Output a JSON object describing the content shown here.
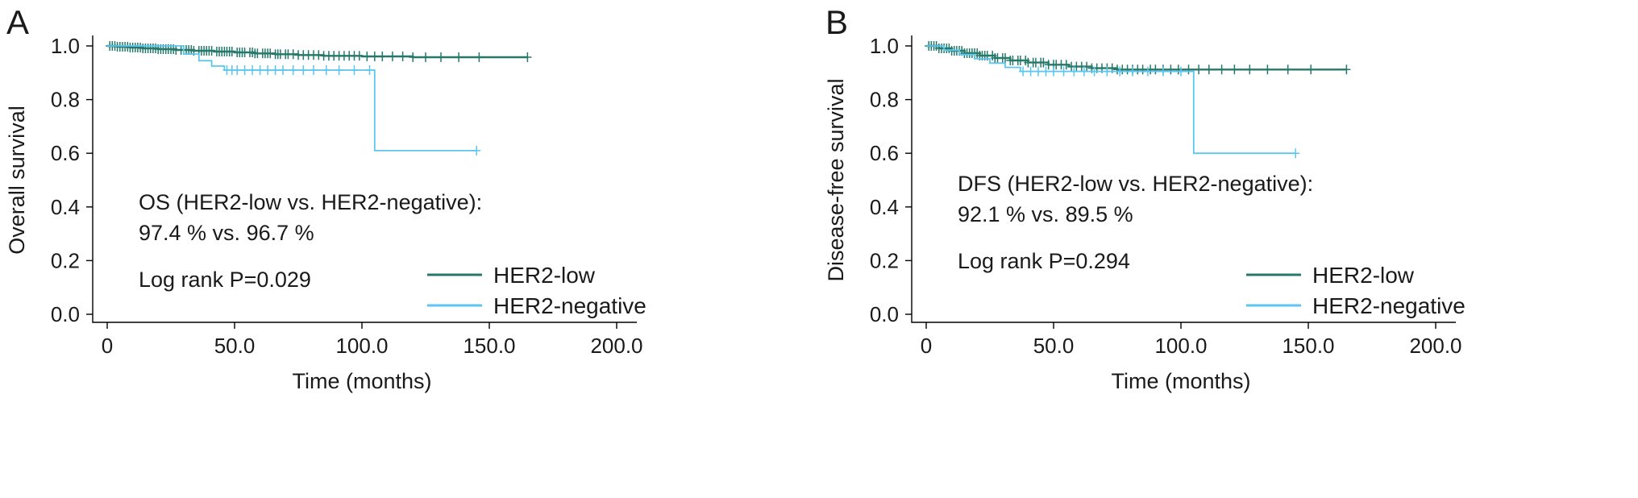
{
  "figure": {
    "background": "#ffffff",
    "text_color": "#1a1a1a",
    "axis_color": "#000000"
  },
  "chart_data": [
    {
      "type": "line",
      "chart_style": "kaplan-meier-step",
      "panel_label": "A",
      "xlabel": "Time (months)",
      "ylabel": "Overall survival",
      "xlim": [
        0,
        200
      ],
      "ylim": [
        0.0,
        1.0
      ],
      "xtick_values": [
        0,
        50,
        100,
        150,
        200
      ],
      "xtick_labels": [
        "0",
        "50.0",
        "100.0",
        "150.0",
        "200.0"
      ],
      "ytick_values": [
        0,
        0.2,
        0.4,
        0.6,
        0.8,
        1
      ],
      "ytick_labels": [
        "0.0",
        "0.2",
        "0.4",
        "0.6",
        "0.8",
        "1.0"
      ],
      "grid": false,
      "legend_position": "bottom-right-inside",
      "annotation_lines": [
        "OS (HER2-low vs. HER2-negative):",
        "97.4 % vs. 96.7 %",
        "Log rank P=0.029"
      ],
      "series": [
        {
          "name": "HER2-low",
          "color": "#26796a",
          "step_x": [
            0,
            4,
            9,
            14,
            20,
            27,
            34,
            42,
            50,
            58,
            66,
            75,
            85,
            100,
            120,
            165
          ],
          "step_y": [
            1.0,
            0.997,
            0.994,
            0.991,
            0.988,
            0.985,
            0.982,
            0.979,
            0.976,
            0.972,
            0.969,
            0.966,
            0.963,
            0.961,
            0.958,
            0.958
          ],
          "censor_x": [
            1,
            2,
            3,
            4,
            5,
            6,
            7,
            8,
            9,
            10,
            11,
            12,
            13,
            14,
            15,
            16,
            17,
            18,
            19,
            20,
            21,
            22,
            23,
            24,
            25,
            26,
            27,
            29,
            30,
            31,
            32,
            33,
            34,
            36,
            37,
            38,
            39,
            40,
            41,
            43,
            44,
            45,
            46,
            47,
            48,
            49,
            51,
            52,
            53,
            54,
            56,
            57,
            58,
            59,
            61,
            62,
            63,
            64,
            66,
            67,
            68,
            70,
            71,
            73,
            75,
            77,
            79,
            81,
            83,
            85,
            87,
            89,
            91,
            93,
            95,
            97,
            99,
            102,
            105,
            108,
            112,
            116,
            120,
            125,
            131,
            138,
            146,
            165
          ]
        },
        {
          "name": "HER2-negative",
          "color": "#5bc6f0",
          "step_x": [
            0,
            30,
            36,
            41,
            46,
            105,
            145
          ],
          "step_y": [
            1.0,
            0.97,
            0.945,
            0.925,
            0.91,
            0.61,
            0.61
          ],
          "censor_x": [
            47,
            49,
            51,
            54,
            57,
            60,
            63,
            66,
            69,
            73,
            77,
            81,
            86,
            91,
            97,
            103,
            145
          ]
        }
      ]
    },
    {
      "type": "line",
      "chart_style": "kaplan-meier-step",
      "panel_label": "B",
      "xlabel": "Time (months)",
      "ylabel": "Disease-free survival",
      "xlim": [
        0,
        200
      ],
      "ylim": [
        0.0,
        1.0
      ],
      "xtick_values": [
        0,
        50,
        100,
        150,
        200
      ],
      "xtick_labels": [
        "0",
        "50.0",
        "100.0",
        "150.0",
        "200.0"
      ],
      "ytick_values": [
        0,
        0.2,
        0.4,
        0.6,
        0.8,
        1
      ],
      "ytick_labels": [
        "0.0",
        "0.2",
        "0.4",
        "0.6",
        "0.8",
        "1.0"
      ],
      "grid": false,
      "legend_position": "bottom-right-inside",
      "annotation_lines": [
        "DFS (HER2-low vs. HER2-negative):",
        "92.1 % vs. 89.5 %",
        "Log rank P=0.294"
      ],
      "series": [
        {
          "name": "HER2-low",
          "color": "#26796a",
          "step_x": [
            0,
            5,
            10,
            15,
            21,
            27,
            33,
            40,
            48,
            56,
            65,
            75,
            165
          ],
          "step_y": [
            1.0,
            0.991,
            0.982,
            0.973,
            0.964,
            0.955,
            0.946,
            0.938,
            0.93,
            0.923,
            0.917,
            0.912,
            0.912
          ],
          "censor_x": [
            1,
            2,
            3,
            4,
            5,
            6,
            7,
            8,
            9,
            10,
            11,
            12,
            13,
            14,
            15,
            16,
            17,
            18,
            19,
            20,
            21,
            22,
            23,
            24,
            26,
            27,
            28,
            30,
            31,
            33,
            34,
            36,
            37,
            39,
            40,
            42,
            43,
            45,
            46,
            48,
            50,
            51,
            53,
            55,
            57,
            59,
            61,
            63,
            65,
            67,
            69,
            71,
            73,
            75,
            77,
            79,
            81,
            83,
            85,
            88,
            90,
            93,
            96,
            99,
            103,
            107,
            111,
            116,
            121,
            127,
            134,
            142,
            151,
            165
          ]
        },
        {
          "name": "HER2-negative",
          "color": "#5bc6f0",
          "step_x": [
            0,
            7,
            13,
            19,
            25,
            31,
            37,
            105,
            145
          ],
          "step_y": [
            1.0,
            0.984,
            0.968,
            0.952,
            0.936,
            0.92,
            0.905,
            0.6,
            0.6
          ],
          "censor_x": [
            38,
            41,
            44,
            47,
            50,
            54,
            58,
            62,
            66,
            71,
            76,
            81,
            87,
            93,
            100,
            145
          ]
        }
      ]
    }
  ]
}
